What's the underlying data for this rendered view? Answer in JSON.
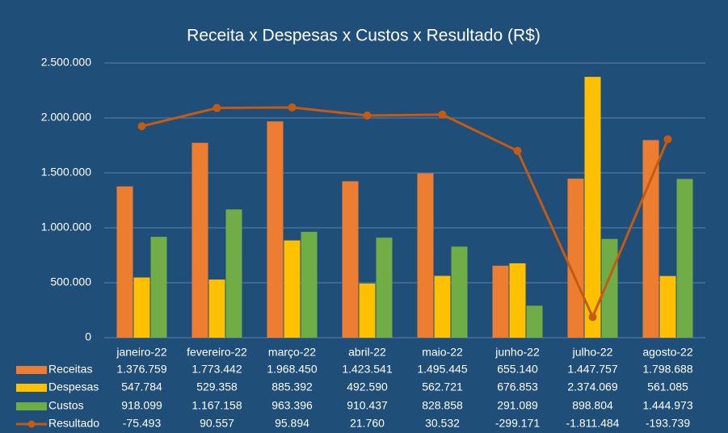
{
  "chart_data": {
    "type": "bar",
    "title": "Receita x Despesas x Custos x Resultado (R$)",
    "categories": [
      "janeiro-22",
      "fevereiro-22",
      "março-22",
      "abril-22",
      "maio-22",
      "junho-22",
      "julho-22",
      "agosto-22"
    ],
    "series": [
      {
        "name": "Receitas",
        "type": "bar",
        "color": "#ed7d31",
        "values": [
          1376759,
          1773442,
          1968450,
          1423541,
          1495445,
          655140,
          1447757,
          1798688
        ],
        "value_labels": [
          "1.376.759",
          "1.773.442",
          "1.968.450",
          "1.423.541",
          "1.495.445",
          "655.140",
          "1.447.757",
          "1.798.688"
        ]
      },
      {
        "name": "Despesas",
        "type": "bar",
        "color": "#ffc000",
        "values": [
          547784,
          529358,
          885392,
          492590,
          562721,
          676853,
          2374069,
          561085
        ],
        "value_labels": [
          "547.784",
          "529.358",
          "885.392",
          "492.590",
          "562.721",
          "676.853",
          "2.374.069",
          "561.085"
        ]
      },
      {
        "name": "Custos",
        "type": "bar",
        "color": "#70ad47",
        "values": [
          918099,
          1167158,
          963396,
          910437,
          828858,
          291089,
          898804,
          1444973
        ],
        "value_labels": [
          "918.099",
          "1.167.158",
          "963.396",
          "910.437",
          "828.858",
          "291.089",
          "898.804",
          "1.444.973"
        ]
      },
      {
        "name": "Resultado",
        "type": "line",
        "axis": "y2",
        "color": "#c55a11",
        "values": [
          -75493,
          90557,
          95894,
          21760,
          30532,
          -299171,
          -1811484,
          -193739
        ],
        "value_labels": [
          "-75.493",
          "90.557",
          "95.894",
          "21.760",
          "30.532",
          "-299.171",
          "-1.811.484",
          "-193.739"
        ]
      }
    ],
    "ylim": [
      0,
      2500000
    ],
    "yticks": [
      0,
      {
        "value": 500000,
        "label": "500.000"
      },
      {
        "value": 1000000,
        "label": "1.000.000"
      },
      {
        "value": 1500000,
        "label": "1.500.000"
      },
      {
        "value": 2000000,
        "label": "2.000.000"
      },
      {
        "value": 2500000,
        "label": "2.500.000"
      }
    ],
    "y2lim": [
      -2000000,
      500000
    ],
    "grid": true
  }
}
